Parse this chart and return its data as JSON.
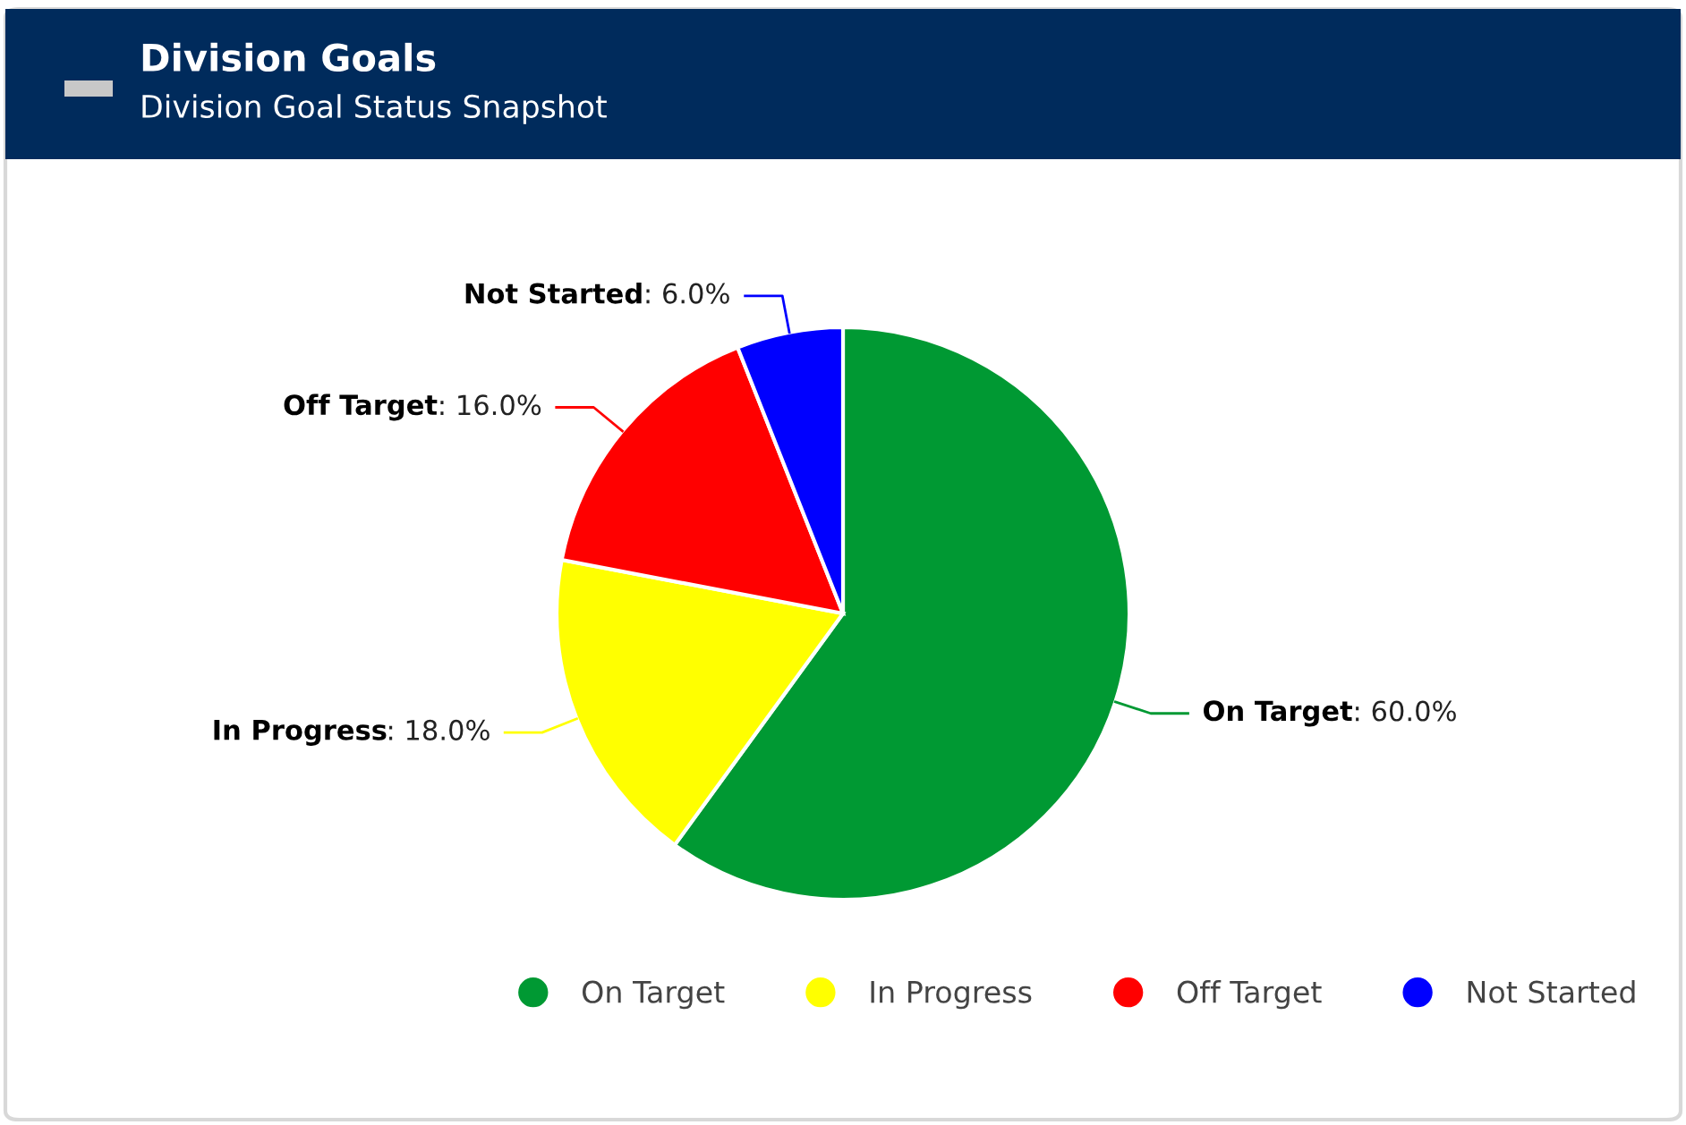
{
  "chart_data": {
    "type": "pie",
    "title": "Division Goals",
    "subtitle": "Division Goal Status Snapshot",
    "categories": [
      "On Target",
      "In Progress",
      "Off Target",
      "Not Started"
    ],
    "values": [
      60,
      18,
      16,
      6
    ],
    "colors": [
      "#009933",
      "#ffff00",
      "#ff0000",
      "#0000ff"
    ],
    "value_labels": [
      ": 60.0%",
      ": 18.0%",
      ": 16.0%",
      ": 6.0%"
    ],
    "legend": "bottom"
  }
}
